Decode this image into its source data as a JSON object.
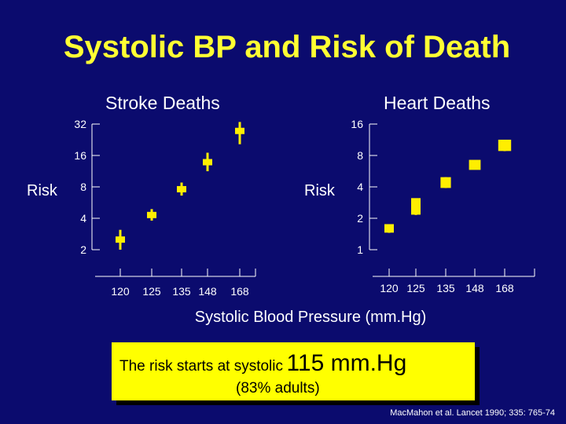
{
  "title": "Systolic BP and Risk of Death",
  "xlabel": "Systolic Blood Pressure (mm.Hg)",
  "callout": {
    "text_small": "The risk starts at systolic",
    "text_big": "115 mm.Hg",
    "line2": "(83% adults)"
  },
  "citation": "MacMahon et al. Lancet 1990; 335: 765-74",
  "colors": {
    "background": "#0b0b6e",
    "title": "#ffff33",
    "marker": "#ffee00",
    "text": "#ffffff",
    "callout_bg": "#ffff00"
  },
  "chart_data": [
    {
      "type": "scatter",
      "title": "Stroke Deaths",
      "ylabel": "Risk",
      "yscale": "log",
      "ylim": [
        2,
        32
      ],
      "yticks": [
        2,
        4,
        8,
        16,
        32
      ],
      "categories": [
        "120",
        "125",
        "135",
        "148",
        "168"
      ],
      "points": [
        {
          "x": "120",
          "y": 2.5,
          "ci": [
            2.0,
            3.1
          ]
        },
        {
          "x": "125",
          "y": 4.3,
          "ci": [
            3.8,
            4.9
          ]
        },
        {
          "x": "135",
          "y": 7.6,
          "ci": [
            6.6,
            8.8
          ]
        },
        {
          "x": "148",
          "y": 13.8,
          "ci": [
            11.3,
            17.0
          ]
        },
        {
          "x": "168",
          "y": 27.5,
          "ci": [
            20.5,
            33.5
          ]
        }
      ]
    },
    {
      "type": "scatter",
      "title": "Heart Deaths",
      "ylabel": "Risk",
      "yscale": "log",
      "ylim": [
        1,
        16
      ],
      "yticks": [
        1,
        2,
        4,
        8,
        16
      ],
      "categories": [
        "120",
        "125",
        "135",
        "148",
        "168"
      ],
      "points": [
        {
          "x": "120",
          "y": 1.6,
          "ci": [
            1.45,
            1.75
          ]
        },
        {
          "x": "125",
          "y": 2.6,
          "ci": [
            2.15,
            3.1
          ]
        },
        {
          "x": "135",
          "y": 4.4,
          "ci": [
            3.9,
            4.95
          ]
        },
        {
          "x": "148",
          "y": 6.5,
          "ci": [
            6.0,
            7.1
          ]
        },
        {
          "x": "168",
          "y": 10.0,
          "ci": [
            8.8,
            11.3
          ]
        }
      ]
    }
  ]
}
